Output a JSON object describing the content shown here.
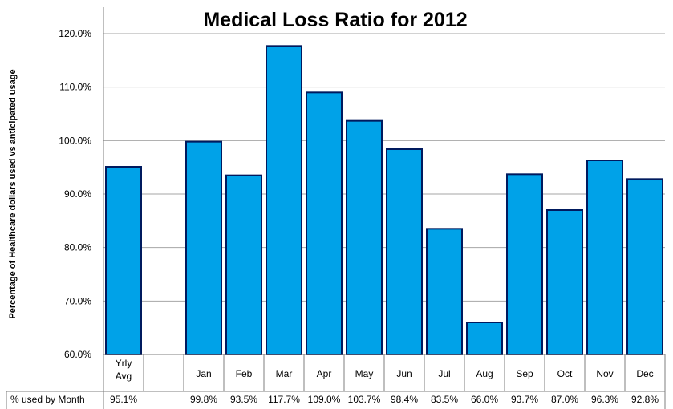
{
  "chart_data": {
    "type": "bar",
    "title": "Medical Loss Ratio for 2012",
    "xlabel": "",
    "ylabel": "Percentage of Healthcare dollars used vs anticipated usage",
    "ylim": [
      60,
      120
    ],
    "yticks": [
      "60.0%",
      "70.0%",
      "80.0%",
      "90.0%",
      "100.0%",
      "110.0%",
      "120.0%"
    ],
    "ytick_values": [
      60,
      70,
      80,
      90,
      100,
      110,
      120
    ],
    "categories": [
      {
        "lines": [
          "Yrly",
          "Avg"
        ]
      },
      {
        "lines": [
          ""
        ]
      },
      {
        "lines": [
          "Jan"
        ]
      },
      {
        "lines": [
          "Feb"
        ]
      },
      {
        "lines": [
          "Mar"
        ]
      },
      {
        "lines": [
          "Apr"
        ]
      },
      {
        "lines": [
          "May"
        ]
      },
      {
        "lines": [
          "Jun"
        ]
      },
      {
        "lines": [
          "Jul"
        ]
      },
      {
        "lines": [
          "Aug"
        ]
      },
      {
        "lines": [
          "Sep"
        ]
      },
      {
        "lines": [
          "Oct"
        ]
      },
      {
        "lines": [
          "Nov"
        ]
      },
      {
        "lines": [
          "Dec"
        ]
      }
    ],
    "series": [
      {
        "values": [
          95.1,
          null,
          99.8,
          93.5,
          117.7,
          109.0,
          103.7,
          98.4,
          83.5,
          66.0,
          93.7,
          87.0,
          96.3,
          92.8
        ],
        "color": "#00A2E8",
        "edge_color": "#001A5E"
      }
    ],
    "table": {
      "row_label": "% used by Month",
      "cells": [
        "95.1%",
        "",
        "99.8%",
        "93.5%",
        "117.7%",
        "109.0%",
        "103.7%",
        "98.4%",
        "83.5%",
        "66.0%",
        "93.7%",
        "87.0%",
        "96.3%",
        "92.8%"
      ]
    },
    "grid": true,
    "legend": "none"
  }
}
